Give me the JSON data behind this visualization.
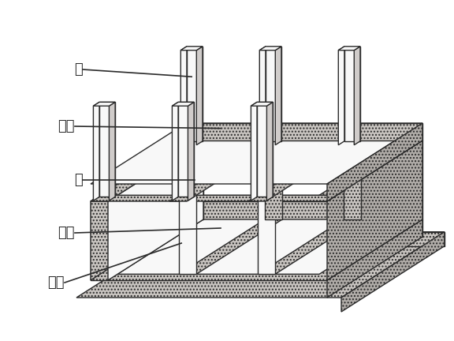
{
  "background_color": "#ffffff",
  "line_color": "#2a2a2a",
  "concrete_color": "#c8c4c0",
  "white_color": "#f8f8f8",
  "side_color": "#b0aca8",
  "labels": {
    "zhu": "柱",
    "dingban": "顶板",
    "qiang": "墙",
    "diban": "底板",
    "dieceng": "垫层"
  },
  "fontsize": 13,
  "lw": 1.0
}
